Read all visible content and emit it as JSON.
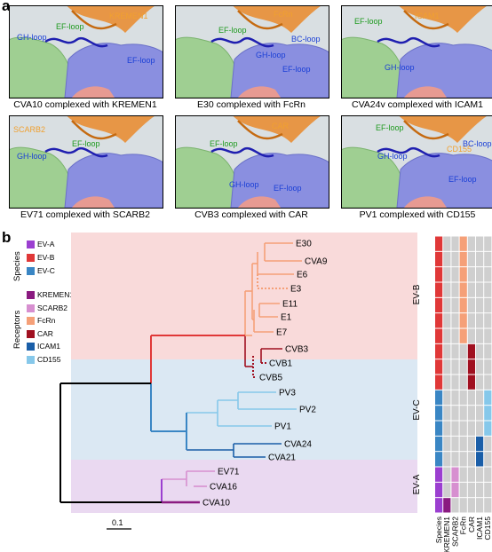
{
  "panel_a": {
    "letter": "a",
    "tiles": [
      {
        "caption": "CVA10 complexed with KREMEN1",
        "receptor": "KREMEN1",
        "loops": [
          "EF-loop",
          "GH-loop",
          "EF-loop"
        ]
      },
      {
        "caption": "E30 complexed with FcRn",
        "receptor": "FcRn",
        "loops": [
          "EF-loop",
          "BC-loop",
          "GH-loop",
          "EF-loop"
        ]
      },
      {
        "caption": "CVA24v complexed with ICAM1",
        "receptor": "ICAM1",
        "loops": [
          "EF-loop",
          "GH-loop"
        ]
      },
      {
        "caption": "EV71 complexed with SCARB2",
        "receptor": "SCARB2",
        "loops": [
          "EF-loop",
          "GH-loop"
        ]
      },
      {
        "caption": "CVB3 complexed with CAR",
        "receptor": "CAR",
        "loops": [
          "EF-loop",
          "GH-loop",
          "EF-loop"
        ]
      },
      {
        "caption": "PV1 complexed with CD155",
        "receptor": "CD155",
        "loops": [
          "EF-loop",
          "BC-loop",
          "GH-loop",
          "EF-loop"
        ]
      }
    ]
  },
  "panel_b": {
    "letter": "b",
    "species_title": "Species",
    "species": [
      {
        "name": "EV-A",
        "color": "#9b3fd0"
      },
      {
        "name": "EV-B",
        "color": "#e03838"
      },
      {
        "name": "EV-C",
        "color": "#3a86c4"
      }
    ],
    "receptors_title": "Receptors",
    "receptors": [
      {
        "name": "KREMEN1",
        "color": "#8a1a80"
      },
      {
        "name": "SCARB2",
        "color": "#d78fd0"
      },
      {
        "name": "FcRn",
        "color": "#f5a078"
      },
      {
        "name": "CAR",
        "color": "#a01020"
      },
      {
        "name": "ICAM1",
        "color": "#1a5ea8"
      },
      {
        "name": "CD155",
        "color": "#86c8ea"
      }
    ],
    "groups": [
      {
        "name": "EV-B",
        "bg": "#f9dada"
      },
      {
        "name": "EV-C",
        "bg": "#dbe8f3"
      },
      {
        "name": "EV-A",
        "bg": "#ead9f1"
      }
    ],
    "leaves": [
      "E30",
      "CVA9",
      "E6",
      "E3",
      "E11",
      "E1",
      "E7",
      "CVB3",
      "CVB1",
      "CVB5",
      "PV3",
      "PV2",
      "PV1",
      "CVA24",
      "CVA21",
      "EV71",
      "CVA16",
      "CVA10"
    ],
    "scale_label": "0.1",
    "matrix_columns": [
      "Species",
      "KREMEN1",
      "SCARB2",
      "FcRn",
      "CAR",
      "ICAM1",
      "CD155"
    ],
    "matrix": [
      [
        "EV-B",
        "",
        "",
        "FcRn",
        "",
        "",
        ""
      ],
      [
        "EV-B",
        "",
        "",
        "FcRn",
        "",
        "",
        ""
      ],
      [
        "EV-B",
        "",
        "",
        "FcRn",
        "",
        "",
        ""
      ],
      [
        "EV-B",
        "",
        "",
        "FcRn",
        "",
        "",
        ""
      ],
      [
        "EV-B",
        "",
        "",
        "FcRn",
        "",
        "",
        ""
      ],
      [
        "EV-B",
        "",
        "",
        "FcRn",
        "",
        "",
        ""
      ],
      [
        "EV-B",
        "",
        "",
        "FcRn",
        "",
        "",
        ""
      ],
      [
        "EV-B",
        "",
        "",
        "",
        "CAR",
        "",
        ""
      ],
      [
        "EV-B",
        "",
        "",
        "",
        "CAR",
        "",
        ""
      ],
      [
        "EV-B",
        "",
        "",
        "",
        "CAR",
        "",
        ""
      ],
      [
        "EV-C",
        "",
        "",
        "",
        "",
        "",
        "CD155"
      ],
      [
        "EV-C",
        "",
        "",
        "",
        "",
        "",
        "CD155"
      ],
      [
        "EV-C",
        "",
        "",
        "",
        "",
        "",
        "CD155"
      ],
      [
        "EV-C",
        "",
        "",
        "",
        "",
        "ICAM1",
        ""
      ],
      [
        "EV-C",
        "",
        "",
        "",
        "",
        "ICAM1",
        ""
      ],
      [
        "EV-A",
        "",
        "SCARB2",
        "",
        "",
        "",
        ""
      ],
      [
        "EV-A",
        "",
        "SCARB2",
        "",
        "",
        "",
        ""
      ],
      [
        "EV-A",
        "KREMEN1",
        "",
        "",
        "",
        "",
        ""
      ]
    ]
  }
}
